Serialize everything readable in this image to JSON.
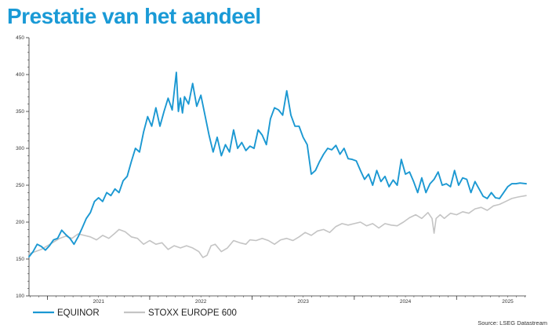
{
  "title": "Prestatie van het aandeel",
  "source": "Source: LSEG Datastream",
  "colors": {
    "title": "#1a9ad6",
    "equinor": "#1b98d2",
    "stoxx": "#c4c4c4",
    "axis": "#333333"
  },
  "chart_data": {
    "type": "line",
    "title": "Prestatie van het aandeel",
    "xlabel": "",
    "ylabel": "",
    "ylim": [
      100,
      450
    ],
    "yticks": [
      100,
      150,
      200,
      250,
      300,
      350,
      400,
      450
    ],
    "xlim": [
      2020.82,
      2025.68
    ],
    "xtick_labels": [
      "2021",
      "2022",
      "2023",
      "2024",
      "2025"
    ],
    "xtick_label_positions": [
      2021.5,
      2022.5,
      2023.5,
      2024.5,
      2025.5
    ],
    "xtick_marks": [
      2021,
      2022,
      2023,
      2024,
      2025
    ],
    "grid": false,
    "legend": "bottom-left",
    "series": [
      {
        "name": "EQUINOR",
        "color": "#1b98d2",
        "points": [
          [
            2020.82,
            153
          ],
          [
            2020.86,
            160
          ],
          [
            2020.9,
            170
          ],
          [
            2020.94,
            167
          ],
          [
            2020.98,
            162
          ],
          [
            2021.02,
            168
          ],
          [
            2021.06,
            176
          ],
          [
            2021.1,
            178
          ],
          [
            2021.14,
            189
          ],
          [
            2021.18,
            183
          ],
          [
            2021.22,
            178
          ],
          [
            2021.26,
            170
          ],
          [
            2021.3,
            180
          ],
          [
            2021.34,
            192
          ],
          [
            2021.38,
            205
          ],
          [
            2021.42,
            213
          ],
          [
            2021.46,
            228
          ],
          [
            2021.5,
            233
          ],
          [
            2021.54,
            228
          ],
          [
            2021.58,
            240
          ],
          [
            2021.62,
            236
          ],
          [
            2021.66,
            245
          ],
          [
            2021.7,
            240
          ],
          [
            2021.74,
            256
          ],
          [
            2021.78,
            262
          ],
          [
            2021.82,
            282
          ],
          [
            2021.86,
            300
          ],
          [
            2021.9,
            295
          ],
          [
            2021.94,
            322
          ],
          [
            2021.98,
            343
          ],
          [
            2022.02,
            330
          ],
          [
            2022.06,
            355
          ],
          [
            2022.1,
            330
          ],
          [
            2022.14,
            350
          ],
          [
            2022.18,
            368
          ],
          [
            2022.22,
            352
          ],
          [
            2022.26,
            403
          ],
          [
            2022.28,
            350
          ],
          [
            2022.3,
            368
          ],
          [
            2022.32,
            348
          ],
          [
            2022.34,
            370
          ],
          [
            2022.38,
            360
          ],
          [
            2022.42,
            388
          ],
          [
            2022.46,
            357
          ],
          [
            2022.5,
            372
          ],
          [
            2022.54,
            345
          ],
          [
            2022.58,
            318
          ],
          [
            2022.62,
            295
          ],
          [
            2022.66,
            315
          ],
          [
            2022.7,
            290
          ],
          [
            2022.74,
            305
          ],
          [
            2022.78,
            295
          ],
          [
            2022.82,
            325
          ],
          [
            2022.86,
            300
          ],
          [
            2022.9,
            308
          ],
          [
            2022.94,
            297
          ],
          [
            2022.98,
            303
          ],
          [
            2023.02,
            300
          ],
          [
            2023.06,
            325
          ],
          [
            2023.1,
            318
          ],
          [
            2023.14,
            305
          ],
          [
            2023.18,
            340
          ],
          [
            2023.22,
            355
          ],
          [
            2023.26,
            352
          ],
          [
            2023.3,
            345
          ],
          [
            2023.34,
            378
          ],
          [
            2023.38,
            345
          ],
          [
            2023.42,
            330
          ],
          [
            2023.46,
            330
          ],
          [
            2023.5,
            315
          ],
          [
            2023.54,
            305
          ],
          [
            2023.58,
            265
          ],
          [
            2023.62,
            270
          ],
          [
            2023.66,
            282
          ],
          [
            2023.7,
            292
          ],
          [
            2023.74,
            300
          ],
          [
            2023.78,
            298
          ],
          [
            2023.82,
            304
          ],
          [
            2023.86,
            292
          ],
          [
            2023.9,
            300
          ],
          [
            2023.94,
            286
          ],
          [
            2023.98,
            285
          ],
          [
            2024.02,
            283
          ],
          [
            2024.06,
            270
          ],
          [
            2024.1,
            258
          ],
          [
            2024.14,
            265
          ],
          [
            2024.18,
            250
          ],
          [
            2024.22,
            270
          ],
          [
            2024.26,
            255
          ],
          [
            2024.3,
            262
          ],
          [
            2024.34,
            248
          ],
          [
            2024.38,
            257
          ],
          [
            2024.42,
            250
          ],
          [
            2024.46,
            285
          ],
          [
            2024.5,
            265
          ],
          [
            2024.54,
            268
          ],
          [
            2024.58,
            255
          ],
          [
            2024.62,
            240
          ],
          [
            2024.66,
            260
          ],
          [
            2024.7,
            240
          ],
          [
            2024.74,
            252
          ],
          [
            2024.78,
            258
          ],
          [
            2024.82,
            268
          ],
          [
            2024.86,
            250
          ],
          [
            2024.9,
            252
          ],
          [
            2024.94,
            248
          ],
          [
            2024.98,
            270
          ],
          [
            2025.02,
            250
          ],
          [
            2025.06,
            260
          ],
          [
            2025.1,
            258
          ],
          [
            2025.14,
            240
          ],
          [
            2025.18,
            255
          ],
          [
            2025.22,
            245
          ],
          [
            2025.26,
            235
          ],
          [
            2025.3,
            232
          ],
          [
            2025.34,
            240
          ],
          [
            2025.38,
            233
          ],
          [
            2025.42,
            232
          ],
          [
            2025.46,
            240
          ],
          [
            2025.5,
            248
          ],
          [
            2025.54,
            252
          ],
          [
            2025.58,
            252
          ],
          [
            2025.62,
            253
          ],
          [
            2025.68,
            252
          ]
        ]
      },
      {
        "name": "STOXX EUROPE 600",
        "color": "#c4c4c4",
        "points": [
          [
            2020.82,
            157
          ],
          [
            2020.88,
            160
          ],
          [
            2020.94,
            163
          ],
          [
            2021.0,
            168
          ],
          [
            2021.06,
            173
          ],
          [
            2021.12,
            178
          ],
          [
            2021.18,
            181
          ],
          [
            2021.24,
            178
          ],
          [
            2021.3,
            184
          ],
          [
            2021.36,
            182
          ],
          [
            2021.42,
            180
          ],
          [
            2021.48,
            176
          ],
          [
            2021.54,
            182
          ],
          [
            2021.6,
            178
          ],
          [
            2021.66,
            185
          ],
          [
            2021.7,
            190
          ],
          [
            2021.76,
            187
          ],
          [
            2021.82,
            180
          ],
          [
            2021.88,
            178
          ],
          [
            2021.94,
            170
          ],
          [
            2022.0,
            175
          ],
          [
            2022.06,
            170
          ],
          [
            2022.12,
            172
          ],
          [
            2022.18,
            163
          ],
          [
            2022.24,
            168
          ],
          [
            2022.3,
            165
          ],
          [
            2022.36,
            168
          ],
          [
            2022.42,
            165
          ],
          [
            2022.48,
            160
          ],
          [
            2022.52,
            152
          ],
          [
            2022.56,
            155
          ],
          [
            2022.6,
            168
          ],
          [
            2022.64,
            170
          ],
          [
            2022.7,
            160
          ],
          [
            2022.76,
            165
          ],
          [
            2022.82,
            175
          ],
          [
            2022.88,
            172
          ],
          [
            2022.94,
            170
          ],
          [
            2022.98,
            176
          ],
          [
            2023.04,
            175
          ],
          [
            2023.1,
            178
          ],
          [
            2023.16,
            175
          ],
          [
            2023.22,
            170
          ],
          [
            2023.28,
            176
          ],
          [
            2023.34,
            178
          ],
          [
            2023.4,
            175
          ],
          [
            2023.46,
            180
          ],
          [
            2023.52,
            186
          ],
          [
            2023.58,
            182
          ],
          [
            2023.64,
            188
          ],
          [
            2023.7,
            190
          ],
          [
            2023.76,
            186
          ],
          [
            2023.82,
            194
          ],
          [
            2023.88,
            198
          ],
          [
            2023.94,
            196
          ],
          [
            2024.0,
            198
          ],
          [
            2024.06,
            200
          ],
          [
            2024.12,
            195
          ],
          [
            2024.18,
            198
          ],
          [
            2024.24,
            192
          ],
          [
            2024.3,
            198
          ],
          [
            2024.36,
            196
          ],
          [
            2024.42,
            195
          ],
          [
            2024.48,
            200
          ],
          [
            2024.54,
            206
          ],
          [
            2024.6,
            210
          ],
          [
            2024.66,
            205
          ],
          [
            2024.72,
            213
          ],
          [
            2024.76,
            205
          ],
          [
            2024.78,
            185
          ],
          [
            2024.8,
            205
          ],
          [
            2024.84,
            210
          ],
          [
            2024.88,
            205
          ],
          [
            2024.94,
            212
          ],
          [
            2025.0,
            210
          ],
          [
            2025.06,
            214
          ],
          [
            2025.12,
            212
          ],
          [
            2025.18,
            218
          ],
          [
            2025.24,
            220
          ],
          [
            2025.3,
            216
          ],
          [
            2025.36,
            222
          ],
          [
            2025.42,
            224
          ],
          [
            2025.48,
            228
          ],
          [
            2025.54,
            232
          ],
          [
            2025.6,
            234
          ],
          [
            2025.68,
            236
          ]
        ]
      }
    ]
  }
}
